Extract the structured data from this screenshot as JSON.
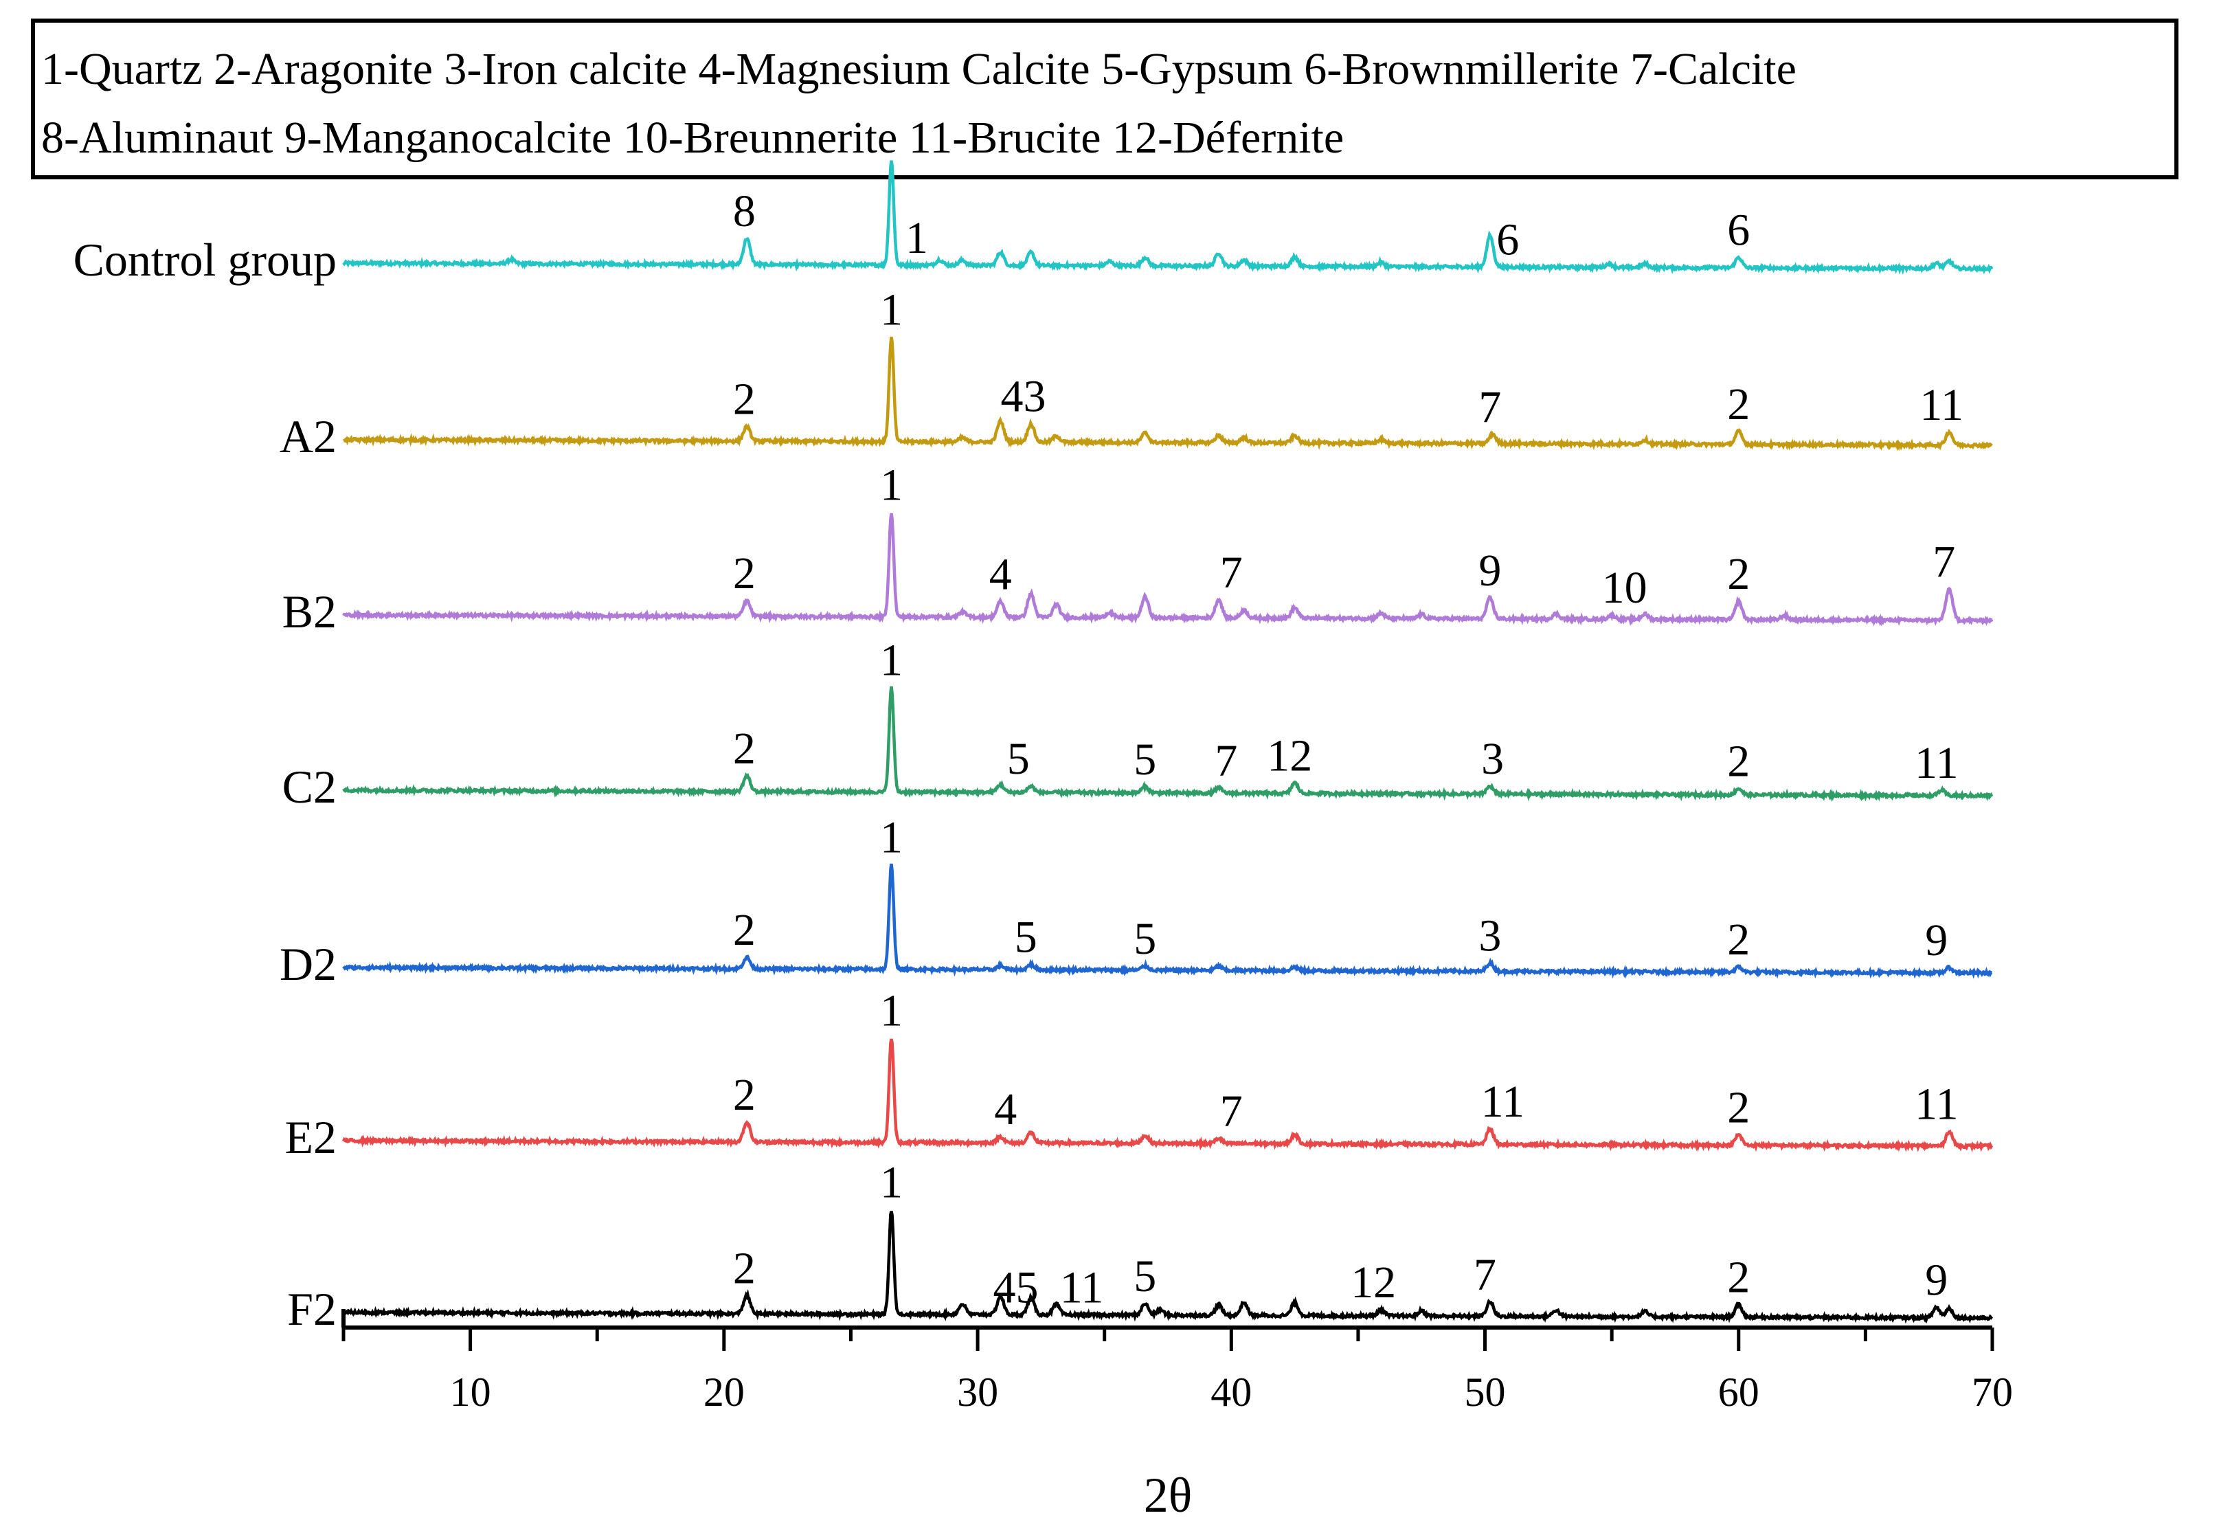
{
  "chart_data": {
    "type": "line",
    "title": "",
    "xlabel": "2θ",
    "ylabel": "",
    "xlim": [
      5,
      70
    ],
    "x_ticks": [
      10,
      20,
      30,
      40,
      50,
      60,
      70
    ],
    "legend_text": [
      "1-Quartz 2-Aragonite 3-Iron calcite 4-Magnesium Calcite 5-Gypsum 6-Brownmillerite 7-Calcite",
      "8-Aluminaut 9-Manganocalcite 10-Breunnerite 11-Brucite 12-Défernite"
    ],
    "series": [
      {
        "name": "Control group",
        "color": "#22c4c4",
        "peaks": [
          [
            11.6,
            0.8
          ],
          [
            20.9,
            5
          ],
          [
            26.6,
            20
          ],
          [
            28.5,
            1
          ],
          [
            29.4,
            1
          ],
          [
            30.9,
            2.5
          ],
          [
            32.1,
            2.5
          ],
          [
            35.2,
            0.8
          ],
          [
            36.6,
            1.6
          ],
          [
            39.5,
            2.5
          ],
          [
            40.5,
            1.2
          ],
          [
            42.5,
            1.8
          ],
          [
            45.9,
            0.8
          ],
          [
            50.2,
            6
          ],
          [
            54.9,
            0.7
          ],
          [
            56.3,
            0.7
          ],
          [
            60.0,
            2
          ],
          [
            67.8,
            1
          ],
          [
            68.3,
            1.4
          ]
        ],
        "labels": [
          {
            "x": 20.8,
            "text": "8"
          },
          {
            "x": 27.6,
            "text": "1"
          },
          {
            "x": 50.9,
            "text": "6"
          },
          {
            "x": 60.0,
            "text": "6"
          }
        ]
      },
      {
        "name": "A2",
        "color": "#c49a10",
        "peaks": [
          [
            20.9,
            2.8
          ],
          [
            26.6,
            20
          ],
          [
            29.4,
            0.8
          ],
          [
            30.9,
            4
          ],
          [
            32.1,
            3.5
          ],
          [
            33.1,
            1.2
          ],
          [
            36.6,
            1.8
          ],
          [
            39.5,
            1.4
          ],
          [
            40.5,
            1
          ],
          [
            42.5,
            1.4
          ],
          [
            45.9,
            0.7
          ],
          [
            50.3,
            1.8
          ],
          [
            56.3,
            0.8
          ],
          [
            60.0,
            2.5
          ],
          [
            68.3,
            2.5
          ]
        ],
        "labels": [
          {
            "x": 20.8,
            "text": "2"
          },
          {
            "x": 26.6,
            "text": "1"
          },
          {
            "x": 31.8,
            "text": "43"
          },
          {
            "x": 50.2,
            "text": "7"
          },
          {
            "x": 60.0,
            "text": "2"
          },
          {
            "x": 68.0,
            "text": "11"
          }
        ]
      },
      {
        "name": "B2",
        "color": "#b07ad8",
        "peaks": [
          [
            20.9,
            3
          ],
          [
            26.6,
            20
          ],
          [
            29.4,
            1
          ],
          [
            30.9,
            3
          ],
          [
            32.1,
            4.5
          ],
          [
            33.1,
            2.5
          ],
          [
            35.2,
            1
          ],
          [
            36.6,
            4
          ],
          [
            39.5,
            3.5
          ],
          [
            40.5,
            1.5
          ],
          [
            42.5,
            2
          ],
          [
            45.9,
            1
          ],
          [
            47.5,
            0.8
          ],
          [
            50.2,
            4
          ],
          [
            52.8,
            1
          ],
          [
            55.0,
            0.8
          ],
          [
            56.3,
            1
          ],
          [
            60.0,
            3.5
          ],
          [
            61.8,
            0.8
          ],
          [
            68.3,
            6
          ]
        ],
        "labels": [
          {
            "x": 20.8,
            "text": "2"
          },
          {
            "x": 26.6,
            "text": "1"
          },
          {
            "x": 30.9,
            "text": "4"
          },
          {
            "x": 40.0,
            "text": "7"
          },
          {
            "x": 50.2,
            "text": "9"
          },
          {
            "x": 55.5,
            "text": "10"
          },
          {
            "x": 60.0,
            "text": "2"
          },
          {
            "x": 68.1,
            "text": "7"
          }
        ]
      },
      {
        "name": "C2",
        "color": "#2e9e66",
        "peaks": [
          [
            20.9,
            3
          ],
          [
            26.6,
            20
          ],
          [
            30.9,
            1.5
          ],
          [
            32.1,
            1.2
          ],
          [
            36.6,
            1.2
          ],
          [
            39.5,
            1
          ],
          [
            42.5,
            2
          ],
          [
            50.2,
            1.5
          ],
          [
            60.0,
            1.2
          ],
          [
            68.0,
            1
          ]
        ],
        "labels": [
          {
            "x": 20.8,
            "text": "2"
          },
          {
            "x": 26.6,
            "text": "1"
          },
          {
            "x": 31.6,
            "text": "5"
          },
          {
            "x": 36.6,
            "text": "5"
          },
          {
            "x": 39.8,
            "text": "7"
          },
          {
            "x": 42.3,
            "text": "12"
          },
          {
            "x": 50.3,
            "text": "3"
          },
          {
            "x": 60.0,
            "text": "2"
          },
          {
            "x": 67.8,
            "text": "11"
          }
        ]
      },
      {
        "name": "D2",
        "color": "#1f66d0",
        "peaks": [
          [
            20.9,
            2.2
          ],
          [
            26.6,
            20
          ],
          [
            30.9,
            0.8
          ],
          [
            32.1,
            1
          ],
          [
            36.6,
            0.8
          ],
          [
            39.5,
            0.8
          ],
          [
            42.5,
            0.7
          ],
          [
            50.2,
            1.6
          ],
          [
            60.0,
            1
          ],
          [
            68.3,
            1
          ]
        ],
        "labels": [
          {
            "x": 20.8,
            "text": "2"
          },
          {
            "x": 26.6,
            "text": "1"
          },
          {
            "x": 31.9,
            "text": "5"
          },
          {
            "x": 36.6,
            "text": "5"
          },
          {
            "x": 50.2,
            "text": "3"
          },
          {
            "x": 60.0,
            "text": "2"
          },
          {
            "x": 67.8,
            "text": "9"
          }
        ]
      },
      {
        "name": "E2",
        "color": "#e84848",
        "peaks": [
          [
            20.9,
            3.8
          ],
          [
            26.6,
            20
          ],
          [
            30.9,
            1.2
          ],
          [
            32.1,
            2
          ],
          [
            36.6,
            1.5
          ],
          [
            39.5,
            1
          ],
          [
            42.5,
            1.8
          ],
          [
            50.2,
            3
          ],
          [
            60.0,
            2
          ],
          [
            68.3,
            2.8
          ]
        ],
        "labels": [
          {
            "x": 20.8,
            "text": "2"
          },
          {
            "x": 26.6,
            "text": "1"
          },
          {
            "x": 31.1,
            "text": "4"
          },
          {
            "x": 40.0,
            "text": "7"
          },
          {
            "x": 50.7,
            "text": "11"
          },
          {
            "x": 60.0,
            "text": "2"
          },
          {
            "x": 67.8,
            "text": "11"
          }
        ]
      },
      {
        "name": "F2",
        "color": "#000000",
        "peaks": [
          [
            20.9,
            3.5
          ],
          [
            26.6,
            20
          ],
          [
            29.4,
            2
          ],
          [
            30.9,
            3.5
          ],
          [
            32.1,
            3.2
          ],
          [
            33.1,
            2
          ],
          [
            36.6,
            2.2
          ],
          [
            37.2,
            1
          ],
          [
            39.5,
            2
          ],
          [
            40.5,
            2.5
          ],
          [
            42.5,
            2.5
          ],
          [
            45.9,
            1.2
          ],
          [
            47.5,
            1
          ],
          [
            50.2,
            2.8
          ],
          [
            52.8,
            1.2
          ],
          [
            56.3,
            1
          ],
          [
            60.0,
            2.4
          ],
          [
            67.8,
            2
          ],
          [
            68.3,
            1.8
          ]
        ],
        "labels": [
          {
            "x": 20.8,
            "text": "2"
          },
          {
            "x": 26.6,
            "text": "1"
          },
          {
            "x": 31.5,
            "text": "45"
          },
          {
            "x": 34.1,
            "text": "11"
          },
          {
            "x": 36.6,
            "text": "5"
          },
          {
            "x": 45.6,
            "text": "12"
          },
          {
            "x": 50.0,
            "text": "7"
          },
          {
            "x": 60.0,
            "text": "2"
          },
          {
            "x": 67.8,
            "text": "9"
          }
        ]
      }
    ]
  }
}
